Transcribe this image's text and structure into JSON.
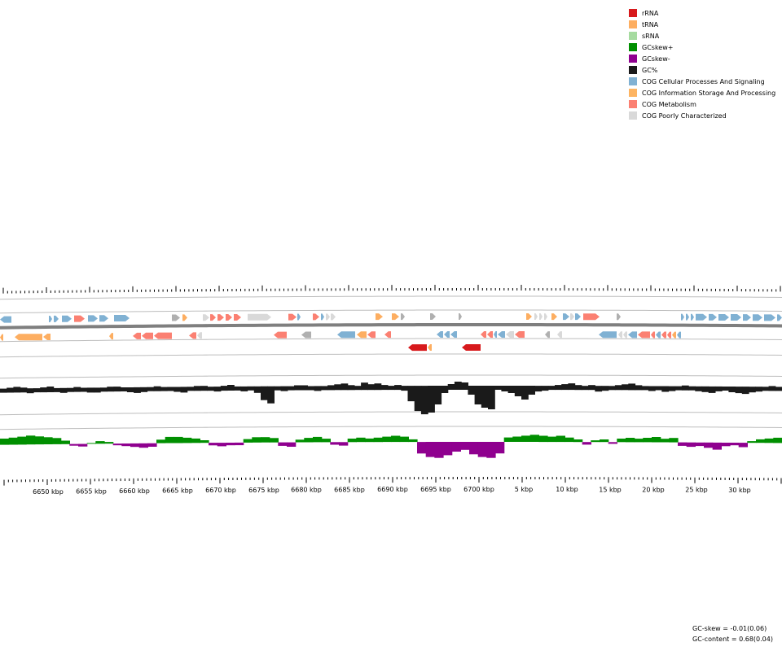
{
  "legend": [
    {
      "label": "rRNA",
      "color": "#d7191c"
    },
    {
      "label": "tRNA",
      "color": "#fdae61"
    },
    {
      "label": "sRNA",
      "color": "#a6dba0"
    },
    {
      "label": "GCskew+",
      "color": "#008f00"
    },
    {
      "label": "GCskew-",
      "color": "#8f008f"
    },
    {
      "label": "GC%",
      "color": "#1a1a1a"
    },
    {
      "label": "COG Cellular Processes And Signaling",
      "color": "#80b1d3"
    },
    {
      "label": "COG Information Storage And Processing",
      "color": "#fdb462"
    },
    {
      "label": "COG Metabolism",
      "color": "#fb8072"
    },
    {
      "label": "COG Poorly Characterized",
      "color": "#d9d9d9"
    }
  ],
  "axis": {
    "tick_labels": [
      "6650 kbp",
      "6655 kbp",
      "6660 kbp",
      "6665 kbp",
      "6670 kbp",
      "6675 kbp",
      "6680 kbp",
      "6685 kbp",
      "6690 kbp",
      "6695 kbp",
      "6700 kbp",
      "5 kbp",
      "10 kbp",
      "15 kbp",
      "20 kbp",
      "25 kbp",
      "30 kbp"
    ]
  },
  "colors": {
    "gc_content": "#1a1a1a",
    "skew_pos": "#008f00",
    "skew_neg": "#8f008f",
    "backbone": "#7f7f7f",
    "track_line": "#bdbdbd",
    "gray_feature": "#b0b0b0"
  },
  "stats": {
    "gc_skew": "GC-skew = -0.01(0.06)",
    "gc_content": "GC-content = 0.68(0.04)"
  }
}
